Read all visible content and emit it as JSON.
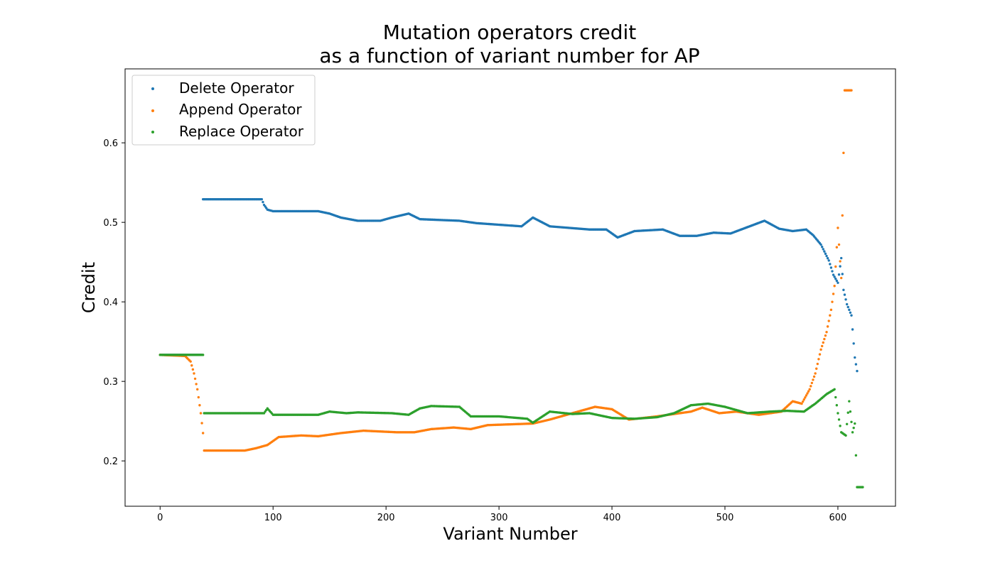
{
  "chart_data": {
    "type": "scatter",
    "title_line1": "Mutation operators credit",
    "title_line2": "as a function of variant number for AP",
    "xlabel": "Variant Number",
    "ylabel": "Credit",
    "xlim": [
      -31,
      651
    ],
    "ylim": [
      0.143,
      0.693
    ],
    "xticks": [
      0,
      100,
      200,
      300,
      400,
      500,
      600
    ],
    "yticks": [
      0.2,
      0.3,
      0.4,
      0.5,
      0.6
    ],
    "grid": false,
    "legend_position": "top-left",
    "series": [
      {
        "name": "Delete Operator",
        "color": "#1f77b4",
        "keypoints": [
          [
            0,
            0.3333
          ],
          [
            37,
            0.3333
          ],
          [
            38,
            0.529
          ],
          [
            90,
            0.529
          ],
          [
            92,
            0.522
          ],
          [
            95,
            0.516
          ],
          [
            100,
            0.514
          ],
          [
            140,
            0.514
          ],
          [
            150,
            0.511
          ],
          [
            160,
            0.506
          ],
          [
            175,
            0.502
          ],
          [
            195,
            0.502
          ],
          [
            205,
            0.506
          ],
          [
            220,
            0.511
          ],
          [
            230,
            0.504
          ],
          [
            265,
            0.502
          ],
          [
            280,
            0.499
          ],
          [
            300,
            0.497
          ],
          [
            320,
            0.495
          ],
          [
            330,
            0.506
          ],
          [
            345,
            0.495
          ],
          [
            380,
            0.491
          ],
          [
            395,
            0.491
          ],
          [
            405,
            0.481
          ],
          [
            420,
            0.489
          ],
          [
            445,
            0.491
          ],
          [
            460,
            0.483
          ],
          [
            475,
            0.483
          ],
          [
            490,
            0.487
          ],
          [
            505,
            0.486
          ],
          [
            520,
            0.494
          ],
          [
            535,
            0.502
          ],
          [
            548,
            0.492
          ],
          [
            560,
            0.489
          ],
          [
            572,
            0.491
          ],
          [
            578,
            0.484
          ],
          [
            585,
            0.472
          ],
          [
            592,
            0.452
          ],
          [
            596,
            0.434
          ],
          [
            600,
            0.424
          ],
          [
            603,
            0.455
          ],
          [
            605,
            0.415
          ],
          [
            608,
            0.397
          ],
          [
            612,
            0.383
          ],
          [
            615,
            0.33
          ],
          [
            617,
            0.313
          ]
        ]
      },
      {
        "name": "Append Operator",
        "color": "#ff7f0e",
        "keypoints": [
          [
            0,
            0.3333
          ],
          [
            22,
            0.332
          ],
          [
            27,
            0.325
          ],
          [
            30,
            0.31
          ],
          [
            33,
            0.29
          ],
          [
            36,
            0.26
          ],
          [
            38,
            0.235
          ],
          [
            39,
            0.213
          ],
          [
            75,
            0.213
          ],
          [
            85,
            0.216
          ],
          [
            95,
            0.22
          ],
          [
            105,
            0.23
          ],
          [
            125,
            0.232
          ],
          [
            140,
            0.231
          ],
          [
            160,
            0.235
          ],
          [
            180,
            0.238
          ],
          [
            210,
            0.236
          ],
          [
            225,
            0.236
          ],
          [
            240,
            0.24
          ],
          [
            260,
            0.242
          ],
          [
            275,
            0.24
          ],
          [
            290,
            0.245
          ],
          [
            330,
            0.247
          ],
          [
            345,
            0.252
          ],
          [
            365,
            0.26
          ],
          [
            385,
            0.268
          ],
          [
            400,
            0.265
          ],
          [
            415,
            0.252
          ],
          [
            440,
            0.256
          ],
          [
            470,
            0.262
          ],
          [
            480,
            0.267
          ],
          [
            495,
            0.26
          ],
          [
            510,
            0.262
          ],
          [
            530,
            0.258
          ],
          [
            550,
            0.262
          ],
          [
            560,
            0.275
          ],
          [
            568,
            0.272
          ],
          [
            575,
            0.29
          ],
          [
            580,
            0.31
          ],
          [
            585,
            0.34
          ],
          [
            590,
            0.362
          ],
          [
            594,
            0.39
          ],
          [
            597,
            0.42
          ],
          [
            600,
            0.493
          ],
          [
            603,
            0.43
          ],
          [
            606,
            0.666
          ],
          [
            612,
            0.666
          ]
        ]
      },
      {
        "name": "Replace Operator",
        "color": "#2ca02c",
        "keypoints": [
          [
            0,
            0.3333
          ],
          [
            38,
            0.3333
          ],
          [
            39,
            0.26
          ],
          [
            92,
            0.26
          ],
          [
            95,
            0.266
          ],
          [
            100,
            0.258
          ],
          [
            140,
            0.258
          ],
          [
            150,
            0.262
          ],
          [
            165,
            0.26
          ],
          [
            175,
            0.261
          ],
          [
            205,
            0.26
          ],
          [
            220,
            0.258
          ],
          [
            230,
            0.266
          ],
          [
            240,
            0.269
          ],
          [
            265,
            0.268
          ],
          [
            275,
            0.256
          ],
          [
            300,
            0.256
          ],
          [
            325,
            0.253
          ],
          [
            330,
            0.248
          ],
          [
            345,
            0.262
          ],
          [
            365,
            0.259
          ],
          [
            380,
            0.26
          ],
          [
            400,
            0.254
          ],
          [
            420,
            0.253
          ],
          [
            440,
            0.255
          ],
          [
            455,
            0.26
          ],
          [
            470,
            0.27
          ],
          [
            485,
            0.272
          ],
          [
            500,
            0.268
          ],
          [
            520,
            0.26
          ],
          [
            540,
            0.262
          ],
          [
            555,
            0.263
          ],
          [
            570,
            0.262
          ],
          [
            580,
            0.272
          ],
          [
            590,
            0.284
          ],
          [
            597,
            0.29
          ],
          [
            600,
            0.26
          ],
          [
            603,
            0.236
          ],
          [
            607,
            0.232
          ],
          [
            610,
            0.275
          ],
          [
            613,
            0.236
          ],
          [
            615,
            0.247
          ],
          [
            617,
            0.167
          ],
          [
            622,
            0.167
          ]
        ]
      }
    ]
  }
}
